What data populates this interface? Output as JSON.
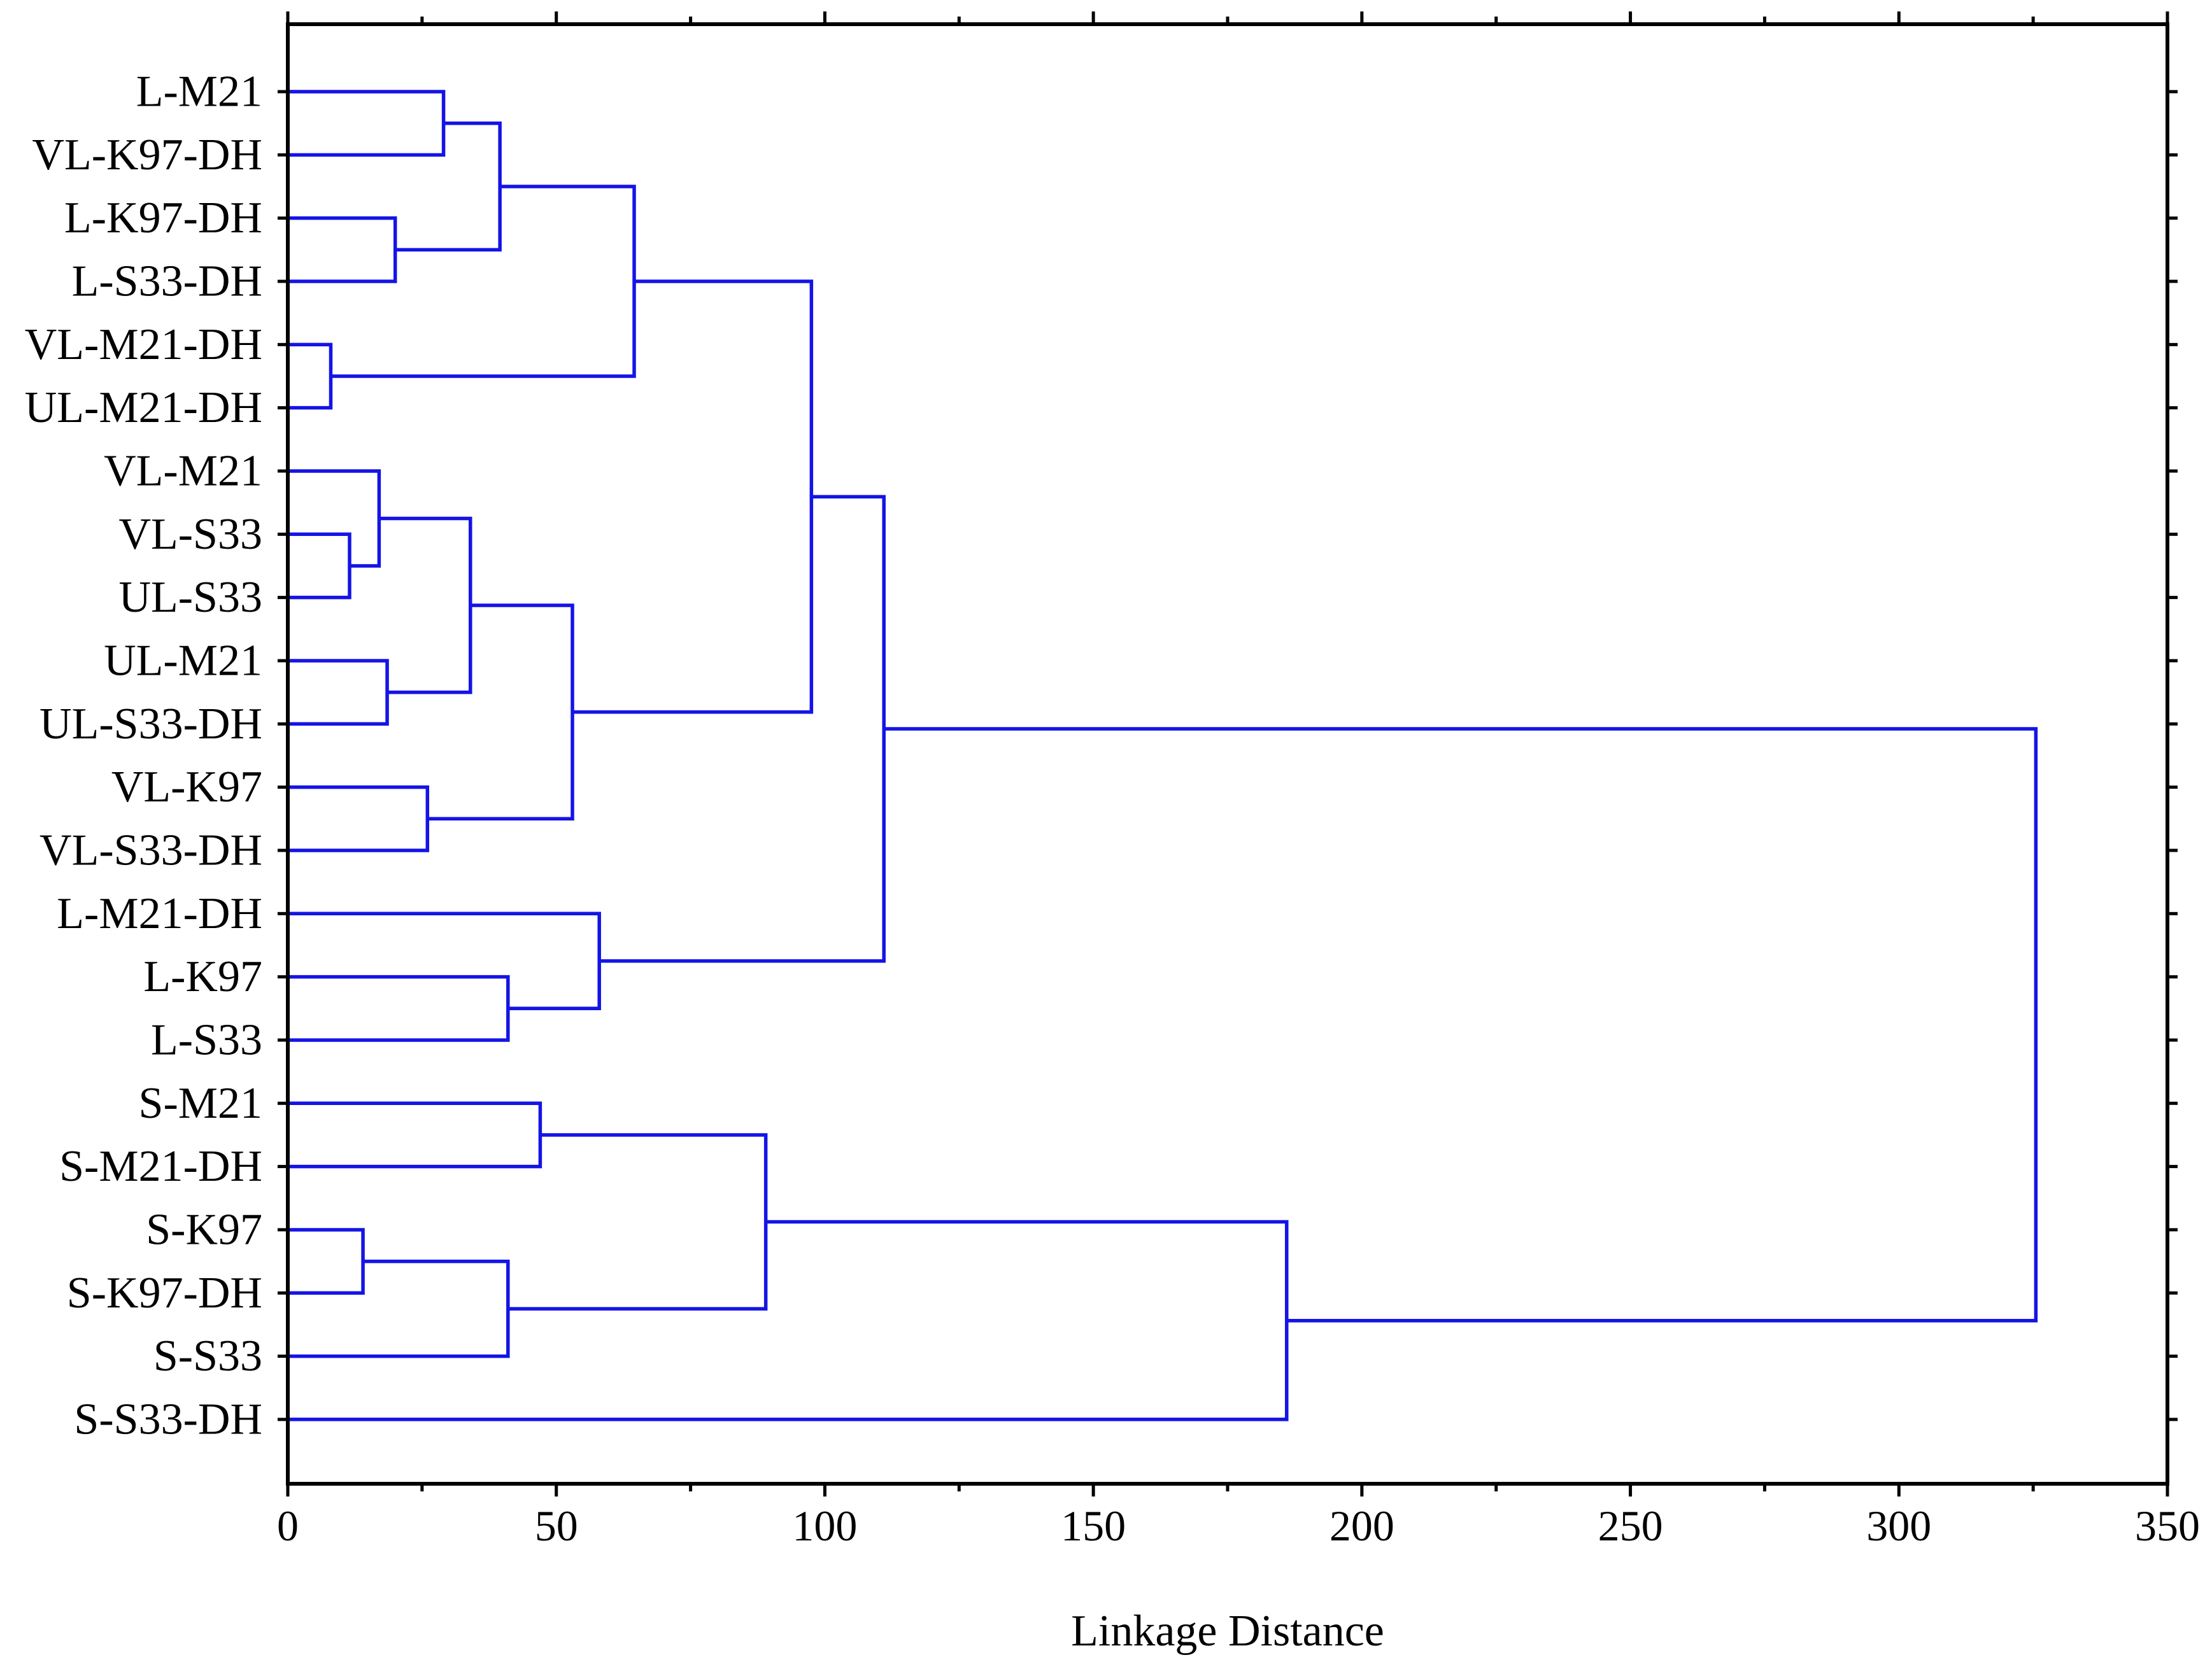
{
  "chart_data": {
    "type": "dendrogram",
    "orientation": "horizontal",
    "xlabel": "Linkage Distance",
    "xlim": [
      0,
      350
    ],
    "xticks": [
      0,
      50,
      100,
      150,
      200,
      250,
      300,
      350
    ],
    "grid": false,
    "line_color": "#1414e6",
    "leaves": [
      "L-M21",
      "VL-K97-DH",
      "L-K97-DH",
      "L-S33-DH",
      "VL-M21-DH",
      "UL-M21-DH",
      "VL-M21",
      "VL-S33",
      "UL-S33",
      "UL-M21",
      "UL-S33-DH",
      "VL-K97",
      "VL-S33-DH",
      "L-M21-DH",
      "L-K97",
      "L-S33",
      "S-M21",
      "S-M21-DH",
      "S-K97",
      "S-K97-DH",
      "S-S33",
      "S-S33-DH"
    ],
    "merges": [
      {
        "left": "L-M21",
        "right": "VL-K97-DH",
        "height": 29
      },
      {
        "left": "L-K97-DH",
        "right": "L-S33-DH",
        "height": 20
      },
      {
        "left": 0,
        "right": 1,
        "height": 39.5
      },
      {
        "left": "VL-M21-DH",
        "right": "UL-M21-DH",
        "height": 8
      },
      {
        "left": 2,
        "right": 3,
        "height": 64.5
      },
      {
        "left": "VL-S33",
        "right": "UL-S33",
        "height": 11.5
      },
      {
        "left": "VL-M21",
        "right": 5,
        "height": 17
      },
      {
        "left": "UL-M21",
        "right": "UL-S33-DH",
        "height": 18.5
      },
      {
        "left": 6,
        "right": 7,
        "height": 34
      },
      {
        "left": "VL-K97",
        "right": "VL-S33-DH",
        "height": 26
      },
      {
        "left": 8,
        "right": 9,
        "height": 53
      },
      {
        "left": 4,
        "right": 10,
        "height": 97.5
      },
      {
        "left": "L-K97",
        "right": "L-S33",
        "height": 41
      },
      {
        "left": "L-M21-DH",
        "right": 12,
        "height": 58
      },
      {
        "left": 11,
        "right": 13,
        "height": 111
      },
      {
        "left": "S-M21",
        "right": "S-M21-DH",
        "height": 47
      },
      {
        "left": "S-K97",
        "right": "S-K97-DH",
        "height": 14
      },
      {
        "left": 16,
        "right": "S-S33",
        "height": 41
      },
      {
        "left": 15,
        "right": 17,
        "height": 89
      },
      {
        "left": 18,
        "right": "S-S33-DH",
        "height": 186
      },
      {
        "left": 14,
        "right": 19,
        "height": 325.5
      }
    ]
  }
}
